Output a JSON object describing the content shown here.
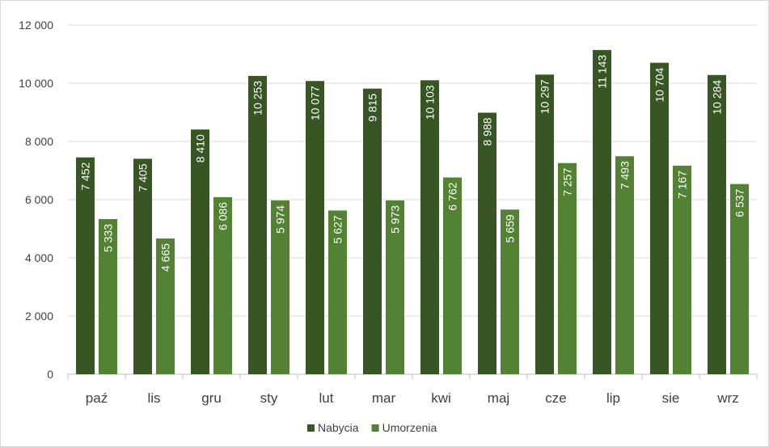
{
  "chart_data": {
    "type": "bar",
    "categories": [
      "paź",
      "lis",
      "gru",
      "sty",
      "lut",
      "mar",
      "kwi",
      "maj",
      "cze",
      "lip",
      "sie",
      "wrz"
    ],
    "series": [
      {
        "name": "Nabycia",
        "color": "#375623",
        "values": [
          7452,
          7405,
          8410,
          10253,
          10077,
          9815,
          10103,
          8988,
          10297,
          11143,
          10704,
          10284
        ],
        "labels": [
          "7 452",
          "7 405",
          "8 410",
          "10 253",
          "10 077",
          "9 815",
          "10 103",
          "8 988",
          "10 297",
          "11 143",
          "10 704",
          "10 284"
        ]
      },
      {
        "name": "Umorzenia",
        "color": "#548235",
        "values": [
          5333,
          4665,
          6086,
          5974,
          5627,
          5973,
          6762,
          5659,
          7257,
          7493,
          7167,
          6537
        ],
        "labels": [
          "5 333",
          "4 665",
          "6 086",
          "5 974",
          "5 627",
          "5 973",
          "6 762",
          "5 659",
          "7 257",
          "7 493",
          "7 167",
          "6 537"
        ]
      }
    ],
    "yticks": [
      {
        "value": 0,
        "label": "0"
      },
      {
        "value": 2000,
        "label": "2 000"
      },
      {
        "value": 4000,
        "label": "4 000"
      },
      {
        "value": 6000,
        "label": "6 000"
      },
      {
        "value": 8000,
        "label": "8 000"
      },
      {
        "value": 10000,
        "label": "10 000"
      },
      {
        "value": 12000,
        "label": "12 000"
      }
    ],
    "ylim": [
      0,
      12000
    ],
    "grid": true,
    "legend_position": "bottom",
    "colors": {
      "grid": "#d9d9d9",
      "axis": "#bfbfbf",
      "text": "#404040",
      "label": "#ffffff"
    }
  }
}
